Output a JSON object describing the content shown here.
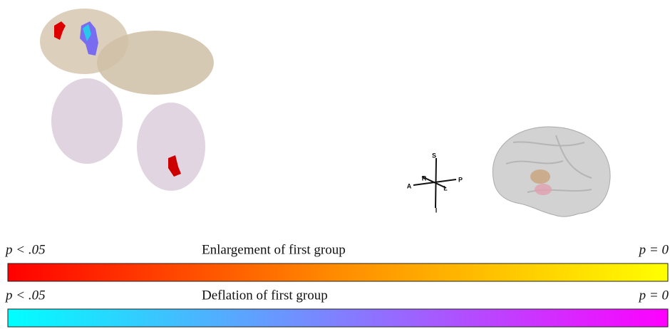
{
  "orientation": {
    "superior": "S",
    "inferior": "I",
    "anterior": "A",
    "posterior": "P",
    "right": "R",
    "left": "L"
  },
  "colorbars": [
    {
      "left_label": "p < .05",
      "title": "Enlargement of first group",
      "right_label": "p = 0",
      "colors": [
        "#ff0000",
        "#ff8c00",
        "#ffff00"
      ]
    },
    {
      "left_label": "p < .05",
      "title": "Deflation of first group",
      "right_label": "p = 0",
      "colors": [
        "#00ffff",
        "#8080ff",
        "#ff00ff"
      ]
    }
  ]
}
